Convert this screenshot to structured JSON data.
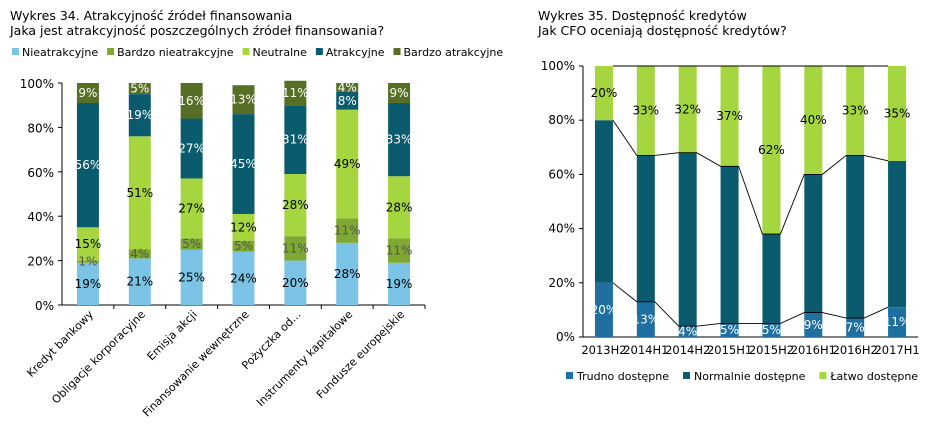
{
  "chart_data": [
    {
      "type": "bar",
      "stacked": true,
      "title": "Wykres 34. Atrakcyjność źródeł finansowania",
      "subtitle": "Jaka jest atrakcyjność poszczególnych źródeł finansowania?",
      "y_ticks": [
        "0%",
        "20%",
        "40%",
        "60%",
        "80%",
        "100%"
      ],
      "ylim": [
        0,
        100
      ],
      "categories": [
        "Kredyt bankowy",
        "Obligacje korporacyjne",
        "Emisja akcji",
        "Finansowanie wewnętrzne",
        "Pożyczka od...",
        "Instrumenty kapitałowe",
        "Fundusze europejskie"
      ],
      "series": [
        {
          "name": "Nieatrakcyjne",
          "color": "#7cc4e6",
          "values": [
            19,
            21,
            25,
            24,
            20,
            28,
            19
          ],
          "labels": [
            "19%",
            "21%",
            "25%",
            "24%",
            "20%",
            "28%",
            "19%"
          ]
        },
        {
          "name": "Bardzo nieatrakcyjne",
          "color": "#7fa832",
          "values": [
            1,
            4,
            5,
            5,
            11,
            11,
            11
          ],
          "labels": [
            "1%",
            "4%",
            "5%",
            "5%",
            "11%",
            "11%",
            "11%"
          ]
        },
        {
          "name": "Neutralne",
          "color": "#a6d63f",
          "values": [
            15,
            51,
            27,
            12,
            28,
            49,
            28
          ],
          "labels": [
            "15%",
            "51%",
            "27%",
            "12%",
            "28%",
            "49%",
            "28%"
          ]
        },
        {
          "name": "Atrakcyjne",
          "color": "#0b5b6e",
          "values": [
            56,
            19,
            27,
            45,
            31,
            8,
            33
          ],
          "labels": [
            "56%",
            "19%",
            "27%",
            "45%",
            "31%",
            "8%",
            "33%"
          ]
        },
        {
          "name": "Bardzo atrakcyjne",
          "color": "#566f25",
          "values": [
            9,
            5,
            16,
            13,
            11,
            4,
            9
          ],
          "labels": [
            "9%",
            "5%",
            "16%",
            "13%",
            "11%",
            "4%",
            "9%"
          ]
        }
      ]
    },
    {
      "type": "bar",
      "stacked": true,
      "title": "Wykres 35. Dostępność kredytów",
      "subtitle": "Jak CFO oceniają dostępność kredytów?",
      "y_ticks": [
        "0%",
        "20%",
        "40%",
        "60%",
        "80%",
        "100%"
      ],
      "ylim": [
        0,
        100
      ],
      "categories": [
        "2013H2",
        "2014H1",
        "2014H2",
        "2015H1",
        "2015H2",
        "2016H1",
        "2016H2",
        "2017H1"
      ],
      "series": [
        {
          "name": "Trudno dostępne",
          "color": "#1f6fa0",
          "values": [
            20,
            13,
            4,
            5,
            5,
            9,
            7,
            11
          ],
          "labels": [
            "20%",
            "13%",
            "4%",
            "5%",
            "5%",
            "9%",
            "7%",
            "11%"
          ]
        },
        {
          "name": "Normalnie dostępne",
          "color": "#0b5b6e",
          "values": [
            60,
            54,
            64,
            58,
            33,
            51,
            60,
            54
          ],
          "labels": [
            "",
            "",
            "",
            "",
            "",
            "",
            "",
            ""
          ]
        },
        {
          "name": "Łatwo dostępne",
          "color": "#a6d63f",
          "values": [
            20,
            33,
            32,
            37,
            62,
            40,
            33,
            35
          ],
          "labels": [
            "20%",
            "33%",
            "32%",
            "37%",
            "62%",
            "40%",
            "33%",
            "35%"
          ]
        }
      ]
    }
  ]
}
